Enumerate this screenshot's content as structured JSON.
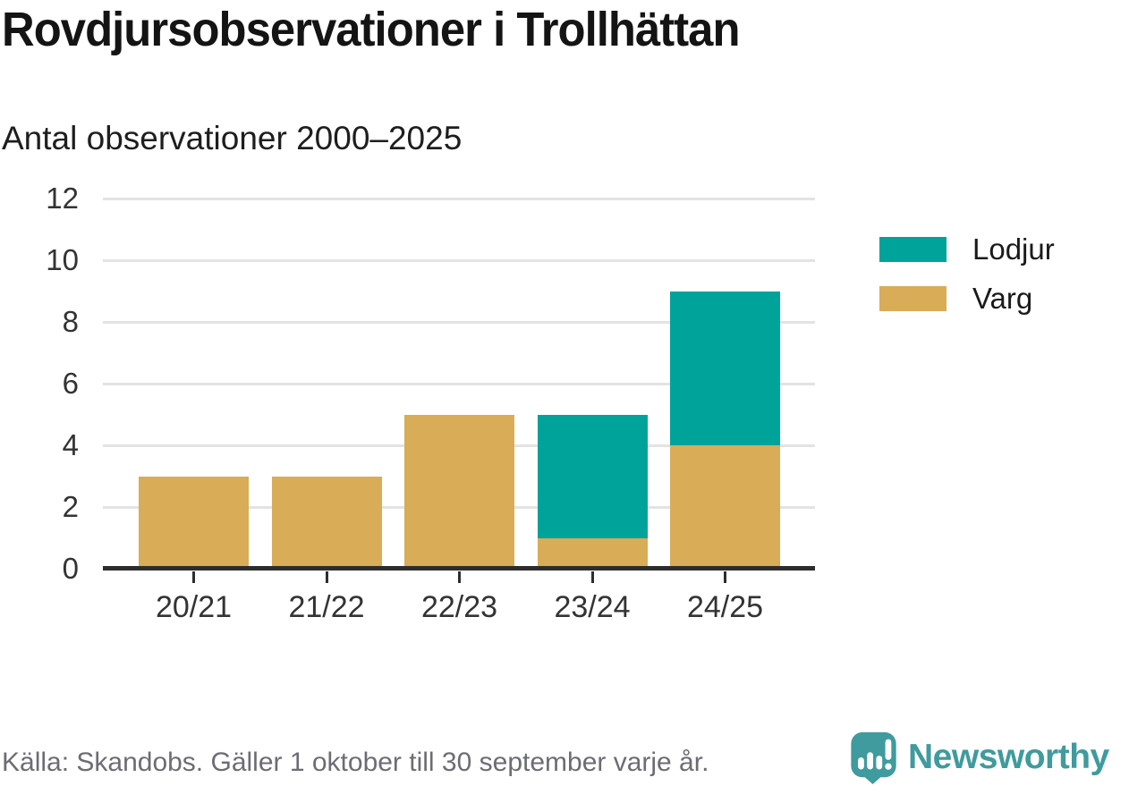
{
  "header": {
    "title": "Rovdjursobservationer i Trollhättan",
    "subtitle": "Antal observationer 2000–2025"
  },
  "footer": {
    "source": "Källa: Skandobs. Gäller 1 oktober till 30 september varje år.",
    "brand_name": "Newsworthy",
    "brand_logo_icon": "bar-chart-speech-bubble-icon",
    "brand_color": "#3f9b9d"
  },
  "colors": {
    "lodjur": "#00a39a",
    "varg": "#d9ac58",
    "gridline": "#e3e3e3",
    "axis": "#2d2d2d",
    "tick_text": "#333333",
    "source_text": "#6c6c74"
  },
  "chart_data": {
    "type": "bar",
    "stacked": true,
    "title": "Rovdjursobservationer i Trollhättan",
    "subtitle": "Antal observationer 2000–2025",
    "categories": [
      "20/21",
      "21/22",
      "22/23",
      "23/24",
      "24/25"
    ],
    "series": [
      {
        "name": "Varg",
        "color": "#d9ac58",
        "values": [
          3,
          3,
          5,
          1,
          4
        ]
      },
      {
        "name": "Lodjur",
        "color": "#00a39a",
        "values": [
          0,
          0,
          0,
          4,
          5
        ]
      }
    ],
    "totals": [
      3,
      3,
      5,
      5,
      9
    ],
    "xlabel": "",
    "ylabel": "",
    "ylim": [
      0,
      12
    ],
    "yticks": [
      0,
      2,
      4,
      6,
      8,
      10,
      12
    ],
    "grid": true,
    "legend_position": "right",
    "legend_order": [
      "Lodjur",
      "Varg"
    ]
  }
}
